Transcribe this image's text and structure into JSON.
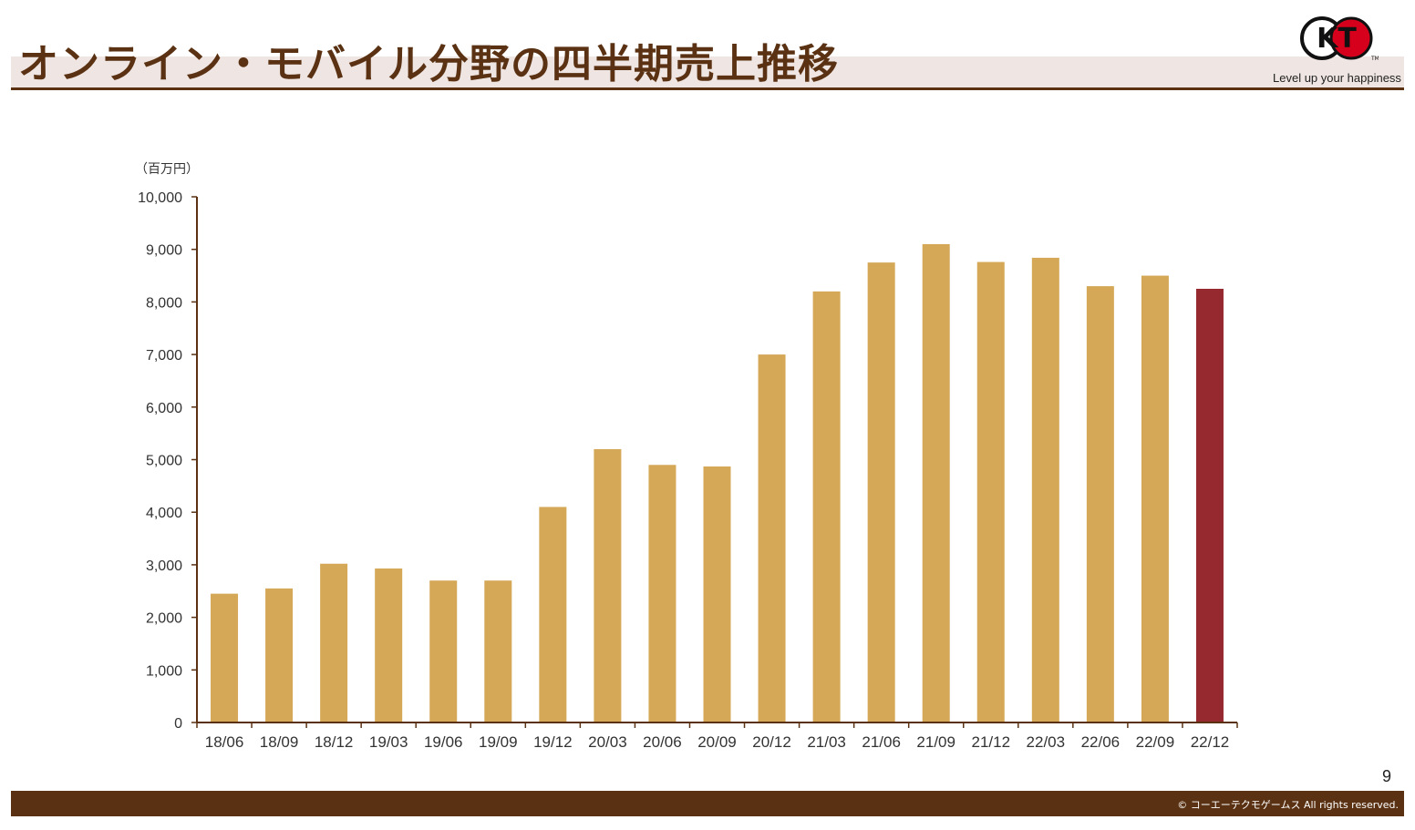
{
  "header": {
    "title": "オンライン・モバイル分野の四半期売上推移",
    "logo_text": "KT",
    "tagline": "Level up your happiness",
    "tm": "TM"
  },
  "chart_data": {
    "type": "bar",
    "unit_label": "（百万円）",
    "categories": [
      "18/06",
      "18/09",
      "18/12",
      "19/03",
      "19/06",
      "19/09",
      "19/12",
      "20/03",
      "20/06",
      "20/09",
      "20/12",
      "21/03",
      "21/06",
      "21/09",
      "21/12",
      "22/03",
      "22/06",
      "22/09",
      "22/12"
    ],
    "values": [
      2450,
      2550,
      3020,
      2930,
      2700,
      2700,
      4100,
      5200,
      4900,
      4870,
      7000,
      8200,
      8750,
      9100,
      8760,
      8840,
      8300,
      8500,
      8250
    ],
    "ylim": [
      0,
      10000
    ],
    "yticks": [
      0,
      1000,
      2000,
      3000,
      4000,
      5000,
      6000,
      7000,
      8000,
      9000,
      10000
    ],
    "ytick_labels": [
      "0",
      "1,000",
      "2,000",
      "3,000",
      "4,000",
      "5,000",
      "6,000",
      "7,000",
      "8,000",
      "9,000",
      "10,000"
    ],
    "highlight_index": 18,
    "colors": {
      "bar": "#d4a857",
      "highlight": "#962830",
      "axis": "#5a3213",
      "tick_text": "#333333"
    },
    "grid": false
  },
  "footer": {
    "page_number": "9",
    "copyright": "© コーエーテクモゲームス All rights reserved."
  },
  "colors": {
    "brand": "#5a3213",
    "band": "#efe5e2",
    "logo_red": "#d6001c"
  }
}
